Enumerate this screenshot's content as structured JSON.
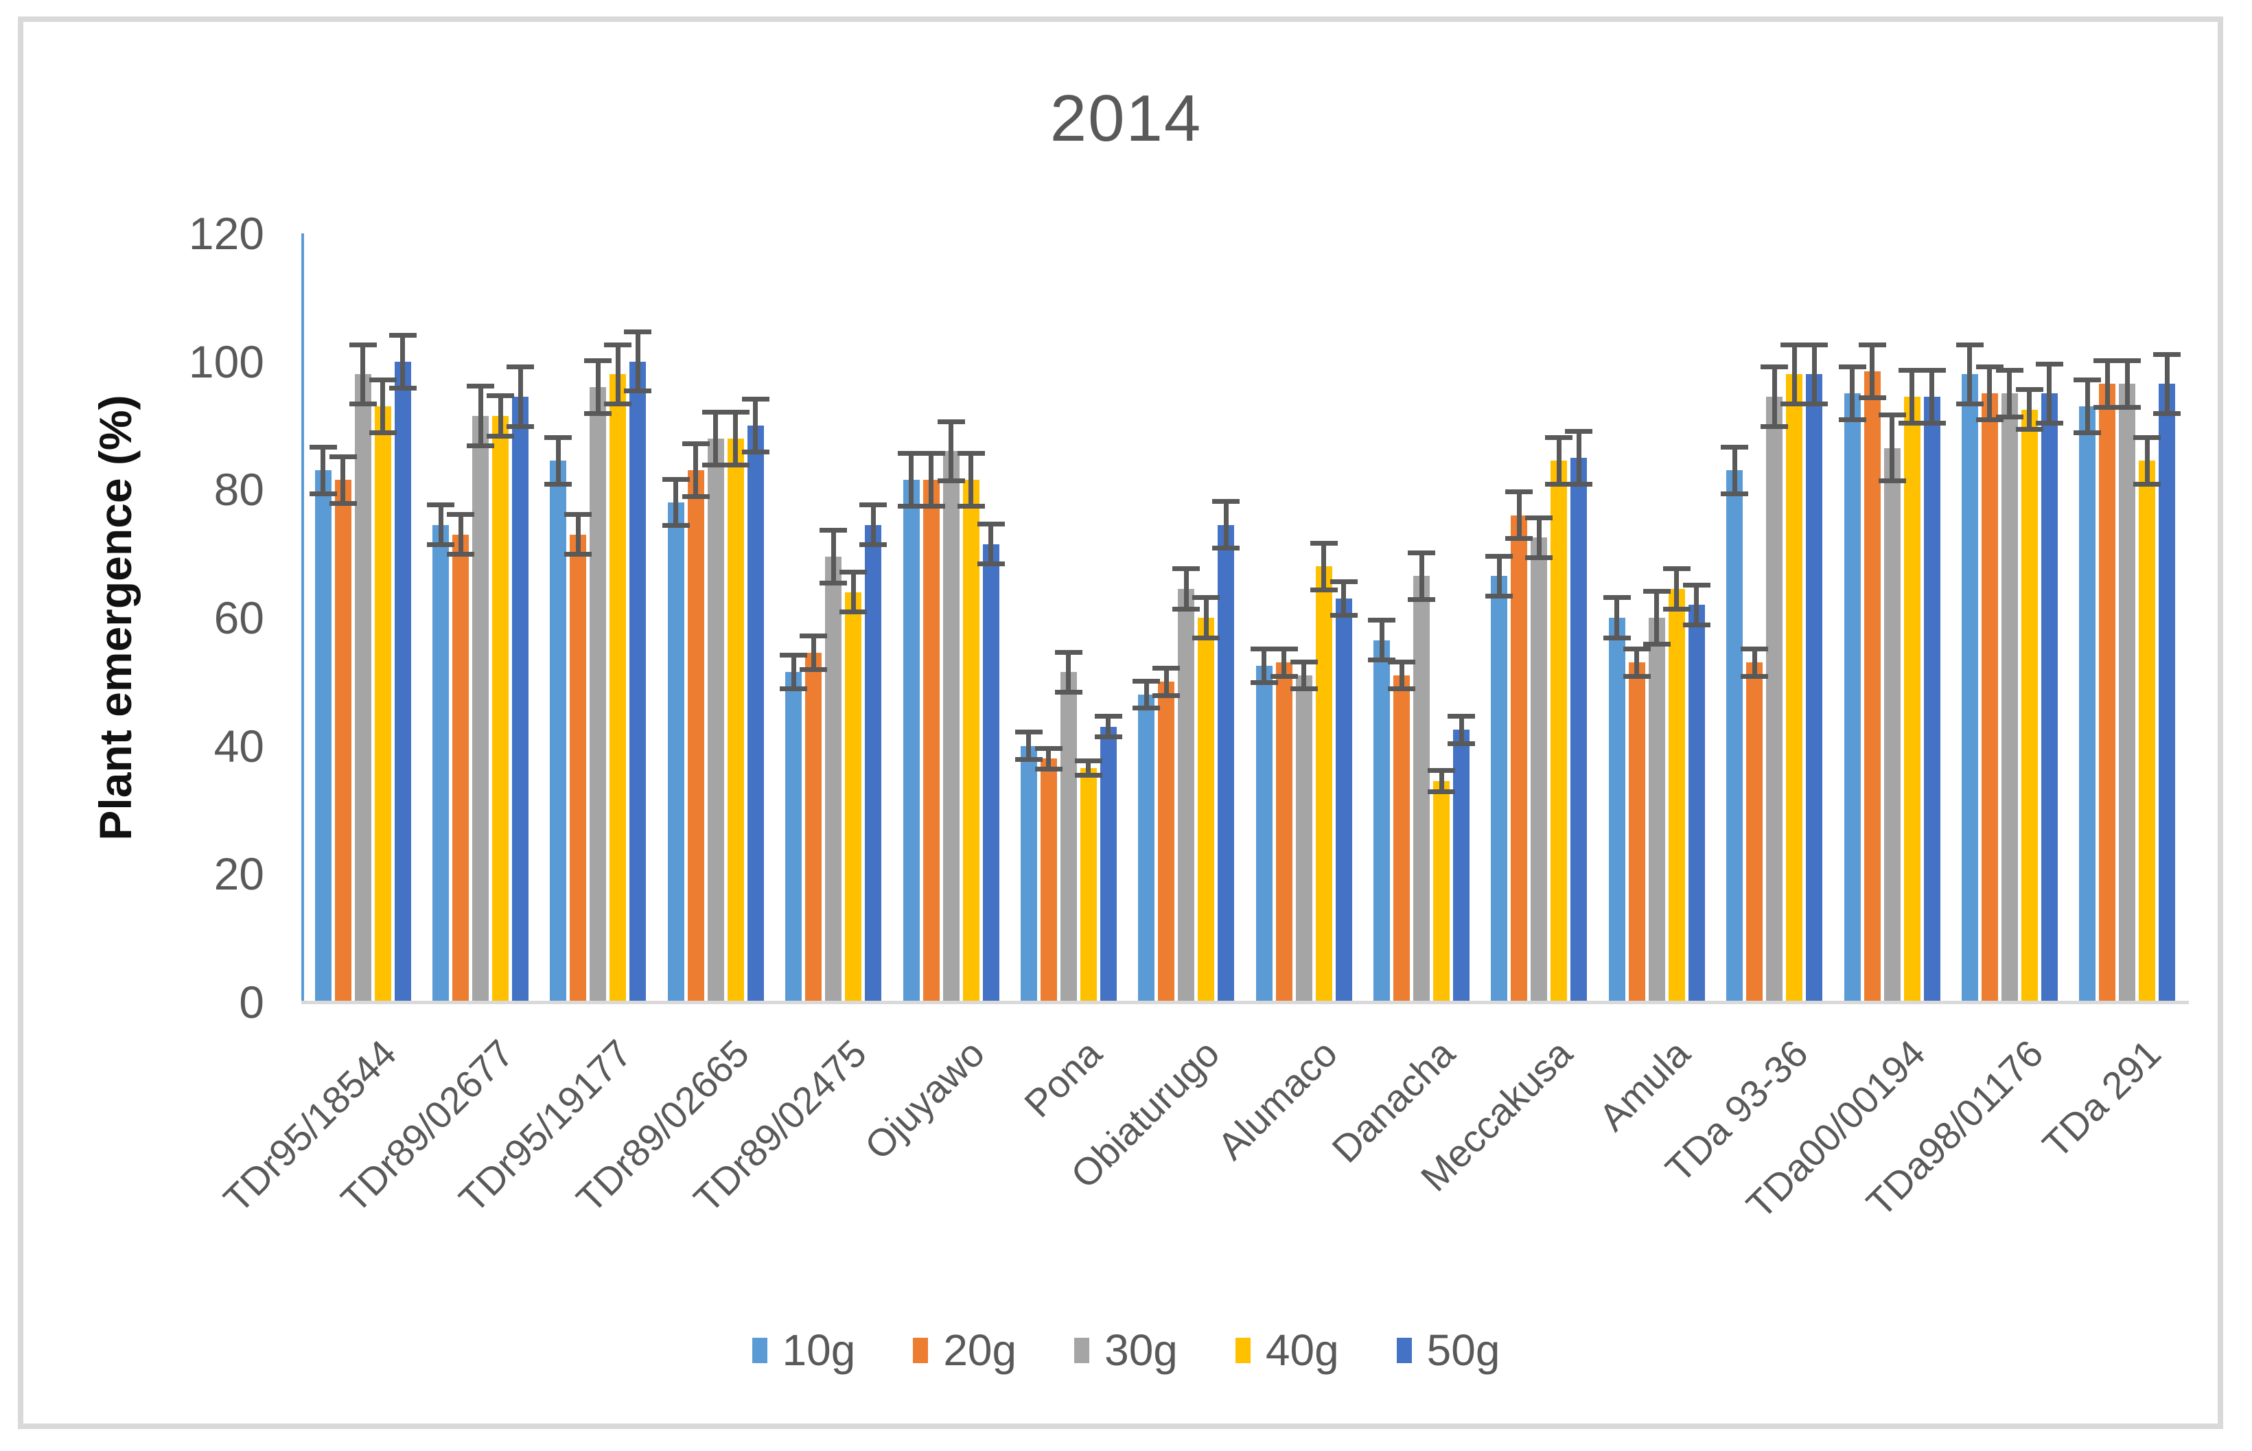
{
  "title": "2014",
  "y_axis": {
    "title": "Plant emergence (%)",
    "ticks": [
      0,
      20,
      40,
      60,
      80,
      100,
      120
    ],
    "min": 0,
    "max": 120
  },
  "legend": {
    "position": "bottom",
    "items": [
      "10g",
      "20g",
      "30g",
      "40g",
      "50g"
    ]
  },
  "colors": {
    "series_10g": "#5B9BD5",
    "series_20g": "#ED7D31",
    "series_30g": "#A5A5A5",
    "series_40g": "#FFC000",
    "series_50g": "#4472C4",
    "error_bar": "#595959",
    "axis_line": "#5B9BD5",
    "baseline": "#D9D9D9",
    "text": "#595959",
    "frame_border": "#D9D9D9"
  },
  "chart_data": {
    "type": "bar",
    "title": "2014",
    "xlabel": "",
    "ylabel": "Plant emergence (%)",
    "ylim": [
      0,
      120
    ],
    "yticks": [
      0,
      20,
      40,
      60,
      80,
      100,
      120
    ],
    "grid": false,
    "legend_position": "bottom",
    "error_bars": true,
    "categories": [
      "TDr95/18544",
      "TDr89/02677",
      "TDr95/19177",
      "TDr89/02665",
      "TDr89/02475",
      "Ojuyawo",
      "Pona",
      "Obiaturugo",
      "Alumaco",
      "Danacha",
      "Meccakusa",
      "Amula",
      "TDa 93-36",
      "TDa00/00194",
      "TDa98/01176",
      "TDa 291"
    ],
    "series": [
      {
        "name": "10g",
        "color": "#5B9BD5",
        "values": [
          83,
          74.5,
          84.5,
          78,
          51.5,
          81.5,
          40,
          48,
          52.5,
          56.5,
          66.5,
          60,
          83,
          95,
          98,
          93
        ],
        "errors": [
          4,
          3.5,
          4,
          4,
          3,
          4.5,
          2.5,
          2.5,
          3,
          3.5,
          3.5,
          3.5,
          4,
          4.5,
          5,
          4.5
        ]
      },
      {
        "name": "20g",
        "color": "#ED7D31",
        "values": [
          81.5,
          73,
          73,
          83,
          54.5,
          81.5,
          38,
          50,
          53,
          51,
          76,
          53,
          53,
          98.5,
          95,
          96.5
        ],
        "errors": [
          4,
          3.5,
          3.5,
          4.5,
          3,
          4.5,
          2,
          2.5,
          2.5,
          2.5,
          4,
          2.5,
          2.5,
          4.5,
          4.5,
          4
        ]
      },
      {
        "name": "30g",
        "color": "#A5A5A5",
        "values": [
          98,
          91.5,
          96,
          88,
          69.5,
          86,
          51.5,
          64.5,
          51,
          66.5,
          72.5,
          60,
          94.5,
          86.5,
          95,
          96.5
        ],
        "errors": [
          5,
          5,
          4.5,
          4.5,
          4.5,
          5,
          3.5,
          3.5,
          2.5,
          4,
          3.5,
          4.5,
          5,
          5.5,
          4,
          4
        ]
      },
      {
        "name": "40g",
        "color": "#FFC000",
        "values": [
          93,
          91.5,
          98,
          88,
          64,
          81.5,
          36.5,
          60,
          68,
          34.5,
          84.5,
          64.5,
          98,
          94.5,
          92.5,
          84.5
        ],
        "errors": [
          4.5,
          3.5,
          5,
          4.5,
          3.5,
          4.5,
          1.5,
          3.5,
          4,
          2,
          4,
          3.5,
          5,
          4.5,
          3.5,
          4
        ]
      },
      {
        "name": "50g",
        "color": "#4472C4",
        "values": [
          100,
          94.5,
          100,
          90,
          74.5,
          71.5,
          43,
          74.5,
          63,
          42.5,
          85,
          62,
          98,
          94.5,
          95,
          96.5
        ],
        "errors": [
          4.5,
          5,
          5,
          4.5,
          3.5,
          3.5,
          2,
          4,
          3,
          2.5,
          4.5,
          3.5,
          5,
          4.5,
          5,
          5
        ]
      }
    ]
  }
}
